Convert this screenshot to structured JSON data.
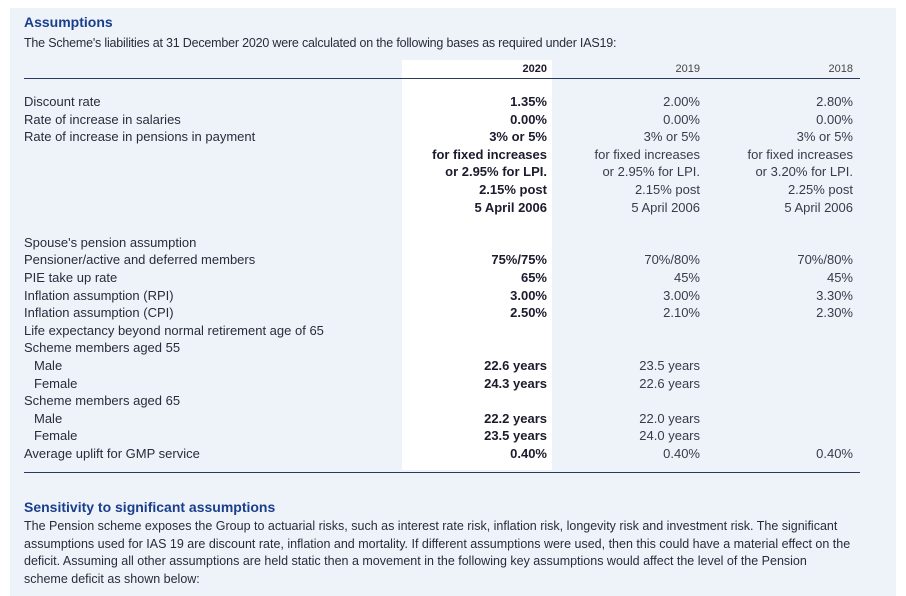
{
  "assumptions": {
    "title": "Assumptions",
    "intro": "The Scheme's liabilities at 31 December 2020 were calculated on the following bases as required under IAS19:"
  },
  "table": {
    "headers": [
      "2020",
      "2019",
      "2018"
    ],
    "row_labels": [
      "Discount rate",
      "Rate of increase in salaries",
      "Rate of increase in pensions in payment",
      "",
      "",
      "",
      "",
      "",
      "Spouse's pension assumption",
      "Pensioner/active and deferred members",
      "PIE take up rate",
      "Inflation assumption (RPI)",
      "Inflation assumption (CPI)",
      "Life expectancy beyond normal retirement age of 65",
      "Scheme members aged 55",
      "Male",
      "Female",
      "Scheme members aged 65",
      "Male",
      "Female",
      "Average uplift for GMP service"
    ],
    "col_2020": [
      "1.35%",
      "0.00%",
      "3% or 5%",
      "for fixed increases",
      "or 2.95% for LPI.",
      "2.15% post",
      "5 April 2006",
      "",
      "",
      "75%/75%",
      "65%",
      "3.00%",
      "2.50%",
      "",
      "",
      "22.6 years",
      "24.3 years",
      "",
      "22.2 years",
      "23.5 years",
      "0.40%"
    ],
    "col_2019": [
      "2.00%",
      "0.00%",
      "3% or 5%",
      "for fixed increases",
      "or 2.95% for LPI.",
      "2.15% post",
      "5 April 2006",
      "",
      "",
      "70%/80%",
      "45%",
      "3.00%",
      "2.10%",
      "",
      "",
      "23.5 years",
      "22.6 years",
      "",
      "22.0 years",
      "24.0 years",
      "0.40%"
    ],
    "col_2018": [
      "2.80%",
      "0.00%",
      "3% or 5%",
      "for fixed increases",
      "or 3.20% for LPI.",
      "2.25% post",
      "5 April 2006",
      "",
      "",
      "70%/80%",
      "45%",
      "3.30%",
      "2.30%",
      "",
      "",
      "",
      "",
      "",
      "",
      "",
      "0.40%"
    ]
  },
  "sensitivity": {
    "title": "Sensitivity to significant assumptions",
    "text": "The Pension scheme exposes the Group to actuarial risks, such as interest rate risk, inflation risk, longevity risk and investment risk. The significant assumptions used for IAS 19 are discount rate, inflation and mortality. If different assumptions were used, then this could have a material effect on the deficit. Assuming all other assumptions are held static then a movement in the following key assumptions would affect the level of the Pension scheme deficit as shown below:"
  }
}
